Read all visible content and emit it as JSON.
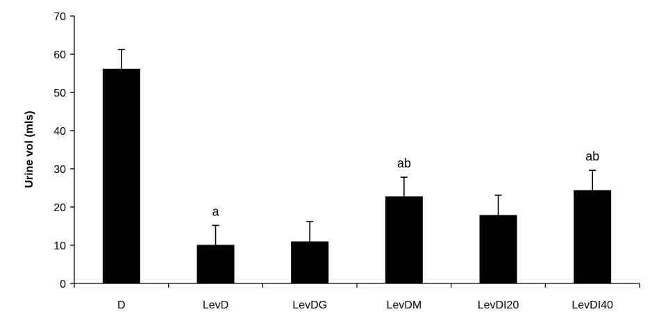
{
  "chart_data": {
    "type": "bar",
    "title": "",
    "xlabel": "",
    "ylabel": "Urine vol (mls)",
    "ylim": [
      0,
      70
    ],
    "yticks": [
      0,
      10,
      20,
      30,
      40,
      50,
      60,
      70
    ],
    "grid": false,
    "legend": "none",
    "bar_color": "#000000",
    "categories": [
      "D",
      "LevD",
      "LevDG",
      "LevDM",
      "LevDI20",
      "LevDI40"
    ],
    "values": [
      56.2,
      10.1,
      11.0,
      22.8,
      17.9,
      24.4
    ],
    "error_plus": [
      5.0,
      5.1,
      5.2,
      5.0,
      5.2,
      5.2
    ],
    "annotations": [
      "",
      "a",
      "",
      "ab",
      "",
      "ab"
    ]
  }
}
